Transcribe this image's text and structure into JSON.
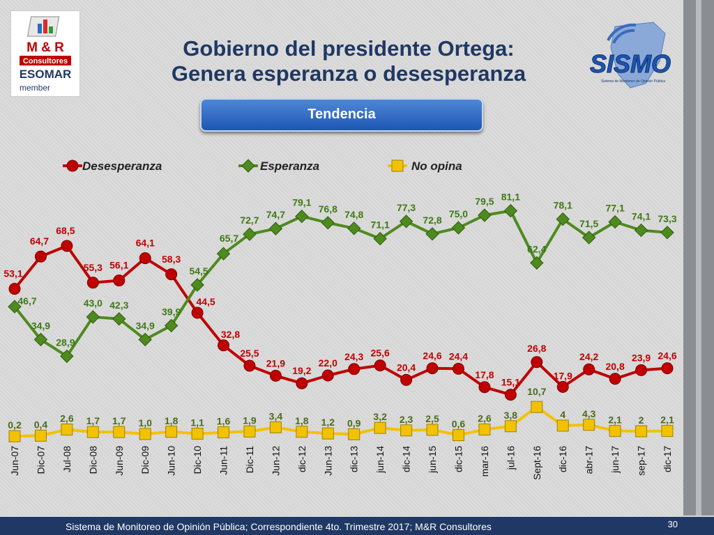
{
  "header": {
    "title_line1": "Gobierno del presidente Ortega:",
    "title_line2": "Genera esperanza o desesperanza",
    "button": "Tendencia"
  },
  "logos": {
    "mr_line1": "M & R",
    "mr_line2": "Consultores",
    "mr_line3": "ESOMAR",
    "mr_line4": "member",
    "sismo": "SISMO",
    "sismo_sub": "Sistema de Monitoreo de Opinión Pública"
  },
  "footer": {
    "text": "Sistema de Monitoreo de Opinión Pública; Correspondiente 4to. Trimestre 2017; M&R Consultores",
    "page": "30"
  },
  "colors": {
    "desesperanza": "#c00000",
    "esperanza": "#4e8a1e",
    "no_opina": "#f2c200",
    "title": "#1f3864"
  },
  "chart_data": {
    "type": "line",
    "categories": [
      "Jun-07",
      "Dic-07",
      "Jul-08",
      "Dic-08",
      "Jun-09",
      "Dic-09",
      "Jun-10",
      "Dic-10",
      "Jun-11",
      "Dic-11",
      "Jun-12",
      "dic-12",
      "Jun-13",
      "dic-13",
      "jun-14",
      "dic-14",
      "jun-15",
      "dic-15",
      "mar-16",
      "jul-16",
      "Sept-16",
      "dic-16",
      "abr-17",
      "jun-17",
      "sep-17",
      "dic-17"
    ],
    "series": [
      {
        "name": "Desesperanza",
        "color": "#c00000",
        "marker": "circle",
        "values": [
          53.1,
          64.7,
          68.5,
          55.3,
          56.1,
          64.1,
          58.3,
          44.5,
          32.8,
          25.5,
          21.9,
          19.2,
          22.0,
          24.3,
          25.6,
          20.4,
          24.6,
          24.4,
          17.8,
          15.1,
          26.8,
          17.9,
          24.2,
          20.8,
          23.9,
          24.6
        ],
        "labels": [
          "53,1",
          "64,7",
          "68,5",
          "55,3",
          "56,1",
          "64,1",
          "58,3",
          "44,5",
          "32,8",
          "25,5",
          "21,9",
          "19,2",
          "22,0",
          "24,3",
          "25,6",
          "20,4",
          "24,6",
          "24,4",
          "17,8",
          "15,1",
          "26,8",
          "17,9",
          "24,2",
          "20,8",
          "23,9",
          "24,6"
        ]
      },
      {
        "name": "Esperanza",
        "color": "#4e8a1e",
        "marker": "diamond",
        "values": [
          46.7,
          34.9,
          28.9,
          43.0,
          42.3,
          34.9,
          39.9,
          54.5,
          65.7,
          72.7,
          74.7,
          79.1,
          76.8,
          74.8,
          71.1,
          77.3,
          72.8,
          75.0,
          79.5,
          81.1,
          62.4,
          78.1,
          71.5,
          77.1,
          74.1,
          73.3
        ],
        "labels": [
          "46,7",
          "34,9",
          "28,9",
          "43,0",
          "42,3",
          "34,9",
          "39,9",
          "54,5",
          "65,7",
          "72,7",
          "74,7",
          "79,1",
          "76,8",
          "74,8",
          "71,1",
          "77,3",
          "72,8",
          "75,0",
          "79,5",
          "81,1",
          "62,4",
          "78,1",
          "71,5",
          "77,1",
          "74,1",
          "73,3"
        ]
      },
      {
        "name": "No opina",
        "color": "#f2c200",
        "marker": "square",
        "values": [
          0.2,
          0.4,
          2.6,
          1.7,
          1.7,
          1.0,
          1.8,
          1.1,
          1.6,
          1.9,
          3.4,
          1.8,
          1.2,
          0.9,
          3.2,
          2.3,
          2.5,
          0.6,
          2.6,
          3.8,
          10.7,
          4,
          4.3,
          2.1,
          2,
          2.1
        ],
        "labels": [
          "0,2",
          "0,4",
          "2,6",
          "1,7",
          "1,7",
          "1,0",
          "1,8",
          "1,1",
          "1,6",
          "1,9",
          "3,4",
          "1,8",
          "1,2",
          "0,9",
          "3,2",
          "2,3",
          "2,5",
          "0,6",
          "2,6",
          "3,8",
          "10,7",
          "4",
          "4,3",
          "2,1",
          "2",
          "2,1"
        ]
      }
    ],
    "legend_position": "top",
    "grid": false
  }
}
